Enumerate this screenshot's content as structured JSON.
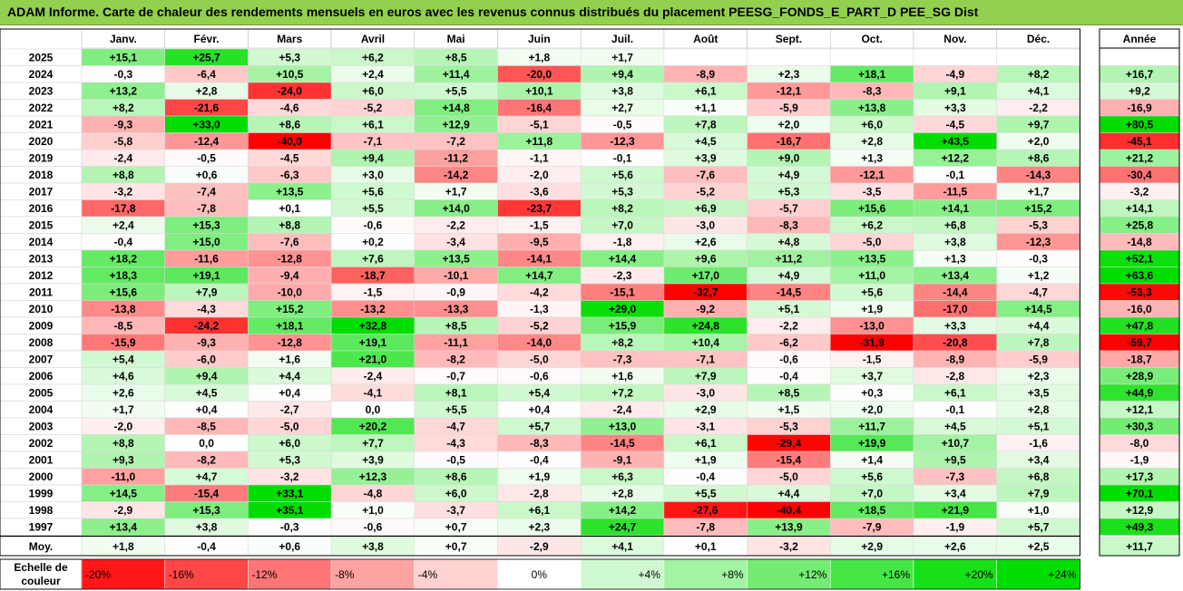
{
  "title": "ADAM Informe. Carte de chaleur des rendements mensuels en euros avec les revenus connus distribués du placement PEESG_FONDS_E_PART_D PEE_SG Dist",
  "chart_data": {
    "type": "heatmap",
    "title": "ADAM Informe. Carte de chaleur des rendements mensuels en euros avec les revenus connus distribués du placement PEESG_FONDS_E_PART_D PEE_SG Dist",
    "columns": [
      "Janv.",
      "Févr.",
      "Mars",
      "Avril",
      "Mai",
      "Juin",
      "Juil.",
      "Août",
      "Sept.",
      "Oct.",
      "Nov.",
      "Déc."
    ],
    "annual_header": "Année",
    "avg_label": "Moy.",
    "rows": [
      {
        "year": "2025",
        "values": [
          "+15,1",
          "+25,7",
          "+5,3",
          "+6,2",
          "+8,5",
          "+1,8",
          "+1,7",
          "",
          "",
          "",
          "",
          ""
        ],
        "annual": ""
      },
      {
        "year": "2024",
        "values": [
          "-0,3",
          "-6,4",
          "+10,5",
          "+2,4",
          "+11,4",
          "-20,0",
          "+9,4",
          "-8,9",
          "+2,3",
          "+18,1",
          "-4,9",
          "+8,2"
        ],
        "annual": "+16,7"
      },
      {
        "year": "2023",
        "values": [
          "+13,2",
          "+2,8",
          "-24,0",
          "+6,0",
          "+5,5",
          "+10,1",
          "+3,8",
          "+6,1",
          "-12,1",
          "-8,3",
          "+9,1",
          "+4,1"
        ],
        "annual": "+9,2"
      },
      {
        "year": "2022",
        "values": [
          "+8,2",
          "-21,6",
          "-4,6",
          "-5,2",
          "+14,8",
          "-16,4",
          "+2,7",
          "+1,1",
          "-5,9",
          "+13,8",
          "+3,3",
          "-2,2"
        ],
        "annual": "-16,9"
      },
      {
        "year": "2021",
        "values": [
          "-9,3",
          "+33,0",
          "+8,6",
          "+6,1",
          "+12,9",
          "-5,1",
          "-0,5",
          "+7,8",
          "+2,0",
          "+6,0",
          "-4,5",
          "+9,7"
        ],
        "annual": "+80,5"
      },
      {
        "year": "2020",
        "values": [
          "-5,8",
          "-12,4",
          "-40,0",
          "-7,1",
          "-7,2",
          "+11,8",
          "-12,3",
          "+4,5",
          "-16,7",
          "+2,8",
          "+43,5",
          "+2,0"
        ],
        "annual": "-45,1"
      },
      {
        "year": "2019",
        "values": [
          "-2,4",
          "-0,5",
          "-4,5",
          "+9,4",
          "-11,2",
          "-1,1",
          "-0,1",
          "+3,9",
          "+9,0",
          "+1,3",
          "+12,2",
          "+8,6"
        ],
        "annual": "+21,2"
      },
      {
        "year": "2018",
        "values": [
          "+8,8",
          "+0,6",
          "-6,3",
          "+3,0",
          "-14,2",
          "-2,0",
          "+5,6",
          "-7,6",
          "+4,9",
          "-12,1",
          "-0,1",
          "-14,3"
        ],
        "annual": "-30,4"
      },
      {
        "year": "2017",
        "values": [
          "-3,2",
          "-7,4",
          "+13,5",
          "+5,6",
          "+1,7",
          "-3,6",
          "+5,3",
          "-5,2",
          "+5,3",
          "-3,5",
          "-11,5",
          "+1,7"
        ],
        "annual": "-3,2"
      },
      {
        "year": "2016",
        "values": [
          "-17,8",
          "-7,8",
          "+0,1",
          "+5,5",
          "+14,0",
          "-23,7",
          "+8,2",
          "+6,9",
          "-5,7",
          "+15,6",
          "+14,1",
          "+15,2"
        ],
        "annual": "+14,1"
      },
      {
        "year": "2015",
        "values": [
          "+2,4",
          "+15,3",
          "+8,8",
          "-0,6",
          "-2,2",
          "-1,5",
          "+7,0",
          "-3,0",
          "-8,3",
          "+6,2",
          "+6,8",
          "-5,3"
        ],
        "annual": "+25,8"
      },
      {
        "year": "2014",
        "values": [
          "-0,4",
          "+15,0",
          "-7,6",
          "+0,2",
          "-3,4",
          "-9,5",
          "-1,8",
          "+2,6",
          "+4,8",
          "-5,0",
          "+3,8",
          "-12,3"
        ],
        "annual": "-14,8"
      },
      {
        "year": "2013",
        "values": [
          "+18,2",
          "-11,6",
          "-12,8",
          "+7,6",
          "+13,5",
          "-14,1",
          "+14,4",
          "+9,6",
          "+11,2",
          "+13,5",
          "+1,3",
          "-0,3"
        ],
        "annual": "+52,1"
      },
      {
        "year": "2012",
        "values": [
          "+18,3",
          "+19,1",
          "-9,4",
          "-18,7",
          "-10,1",
          "+14,7",
          "-2,3",
          "+17,0",
          "+4,9",
          "+11,0",
          "+13,4",
          "+1,2"
        ],
        "annual": "+63,6"
      },
      {
        "year": "2011",
        "values": [
          "+15,6",
          "+7,9",
          "-10,0",
          "-1,5",
          "-0,9",
          "-4,2",
          "-15,1",
          "-32,7",
          "-14,5",
          "+5,6",
          "-14,4",
          "-4,7"
        ],
        "annual": "-53,3"
      },
      {
        "year": "2010",
        "values": [
          "-13,8",
          "-4,3",
          "+15,2",
          "-13,2",
          "-13,3",
          "-1,3",
          "+29,0",
          "-9,2",
          "+5,1",
          "+1,9",
          "-17,0",
          "+14,5"
        ],
        "annual": "-16,0"
      },
      {
        "year": "2009",
        "values": [
          "-8,5",
          "-24,2",
          "+18,1",
          "+32,8",
          "+8,5",
          "-5,2",
          "+15,9",
          "+24,8",
          "-2,2",
          "-13,0",
          "+3,3",
          "+4,4"
        ],
        "annual": "+47,8"
      },
      {
        "year": "2008",
        "values": [
          "-15,9",
          "-9,3",
          "-12,8",
          "+19,1",
          "-11,1",
          "-14,0",
          "+8,2",
          "+10,4",
          "-6,2",
          "-31,9",
          "-20,8",
          "+7,8"
        ],
        "annual": "-59,7"
      },
      {
        "year": "2007",
        "values": [
          "+5,4",
          "-6,0",
          "+1,6",
          "+21,0",
          "-8,2",
          "-5,0",
          "-7,3",
          "-7,1",
          "-0,6",
          "-1,5",
          "-8,9",
          "-5,9"
        ],
        "annual": "-18,7"
      },
      {
        "year": "2006",
        "values": [
          "+4,6",
          "+9,4",
          "+4,4",
          "-2,4",
          "-0,7",
          "-0,6",
          "+1,6",
          "+7,9",
          "-0,4",
          "+3,7",
          "-2,8",
          "+2,3"
        ],
        "annual": "+28,9"
      },
      {
        "year": "2005",
        "values": [
          "+2,6",
          "+4,5",
          "+0,4",
          "-4,1",
          "+8,1",
          "+5,4",
          "+7,2",
          "-3,0",
          "+8,5",
          "+0,3",
          "+6,1",
          "+3,5"
        ],
        "annual": "+44,9"
      },
      {
        "year": "2004",
        "values": [
          "+1,7",
          "+0,4",
          "-2,7",
          "0,0",
          "+5,5",
          "+0,4",
          "-2,4",
          "+2,9",
          "+1,5",
          "+2,0",
          "-0,1",
          "+2,8"
        ],
        "annual": "+12,1"
      },
      {
        "year": "2003",
        "values": [
          "-2,0",
          "-8,5",
          "-5,0",
          "+20,2",
          "-4,7",
          "+5,7",
          "+13,0",
          "-3,1",
          "-5,3",
          "+11,7",
          "+4,5",
          "+5,1"
        ],
        "annual": "+30,3"
      },
      {
        "year": "2002",
        "values": [
          "+8,8",
          "0,0",
          "+6,0",
          "+7,7",
          "-4,3",
          "-8,3",
          "-14,5",
          "+6,1",
          "-29,4",
          "+19,9",
          "+10,7",
          "-1,6"
        ],
        "annual": "-8,0"
      },
      {
        "year": "2001",
        "values": [
          "+9,3",
          "-8,2",
          "+5,3",
          "+3,9",
          "-0,5",
          "-0,4",
          "-9,1",
          "+1,9",
          "-15,4",
          "+1,4",
          "+9,5",
          "+3,4"
        ],
        "annual": "-1,9"
      },
      {
        "year": "2000",
        "values": [
          "-11,0",
          "+4,7",
          "-3,2",
          "+12,3",
          "+8,6",
          "+1,9",
          "+6,3",
          "-0,4",
          "-5,0",
          "+5,6",
          "-7,3",
          "+6,8"
        ],
        "annual": "+17,3"
      },
      {
        "year": "1999",
        "values": [
          "+14,5",
          "-15,4",
          "+33,1",
          "-4,8",
          "+6,0",
          "-2,8",
          "+2,8",
          "+5,5",
          "+4,4",
          "+7,0",
          "+3,4",
          "+7,9"
        ],
        "annual": "+70,1"
      },
      {
        "year": "1998",
        "values": [
          "-2,9",
          "+15,3",
          "+35,1",
          "+1,0",
          "-3,7",
          "+6,1",
          "+14,2",
          "-27,6",
          "-40,4",
          "+18,5",
          "+21,9",
          "+1,0"
        ],
        "annual": "+12,9"
      },
      {
        "year": "1997",
        "values": [
          "+13,4",
          "+3,8",
          "-0,3",
          "-0,6",
          "+0,7",
          "+2,3",
          "+24,7",
          "-7,8",
          "+13,9",
          "-7,9",
          "-1,9",
          "+5,7"
        ],
        "annual": "+49,3"
      }
    ],
    "averages": {
      "values": [
        "+1,8",
        "-0,4",
        "+0,6",
        "+3,8",
        "+0,7",
        "-2,9",
        "+4,1",
        "+0,1",
        "-3,2",
        "+2,9",
        "+2,6",
        "+2,5"
      ],
      "annual": "+11,7"
    },
    "legend": {
      "label_line1": "Echelle de",
      "label_line2": "couleur",
      "stops": [
        "-20%",
        "-16%",
        "-12%",
        "-8%",
        "-4%",
        "0%",
        "+4%",
        "+8%",
        "+12%",
        "+16%",
        "+20%",
        "+24%"
      ]
    },
    "colors": {
      "neg_strong": "#ff0000",
      "pos_strong": "#00dd00",
      "neutral": "#ffffff",
      "title_bg": "#92d050"
    }
  }
}
